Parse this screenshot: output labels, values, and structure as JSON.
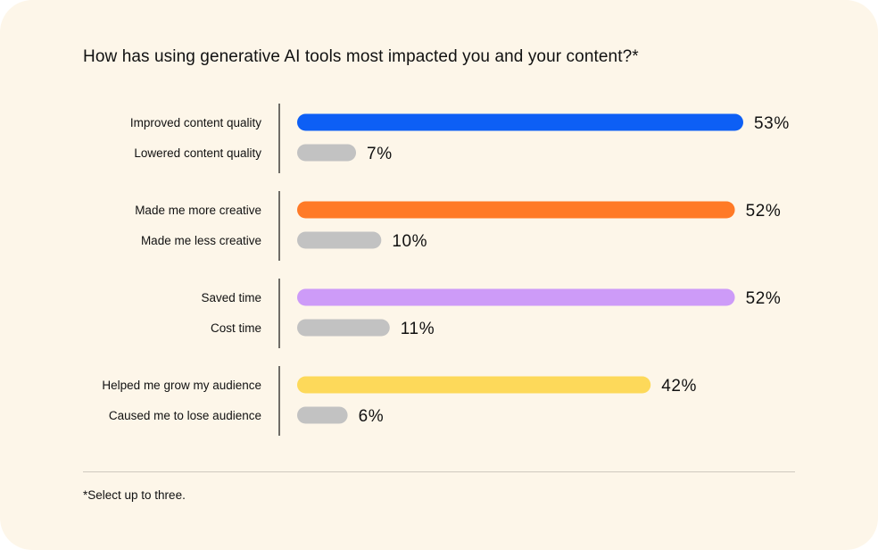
{
  "chart_data": {
    "type": "bar",
    "orientation": "horizontal",
    "title": "How has using generative AI tools most impacted you and your content?*",
    "unit": "%",
    "xlim": [
      0,
      53
    ],
    "grid": false,
    "legend": "none",
    "groups": [
      {
        "items": [
          {
            "label": "Improved content quality",
            "value": 53,
            "display": "53%",
            "color": "#0d5ff5"
          },
          {
            "label": "Lowered content quality",
            "value": 7,
            "display": "7%",
            "color": "#c2c2c2"
          }
        ]
      },
      {
        "items": [
          {
            "label": "Made me more creative",
            "value": 52,
            "display": "52%",
            "color": "#ff7a27"
          },
          {
            "label": "Made me less creative",
            "value": 10,
            "display": "10%",
            "color": "#c2c2c2"
          }
        ]
      },
      {
        "items": [
          {
            "label": "Saved time",
            "value": 52,
            "display": "52%",
            "color": "#cd9bf8"
          },
          {
            "label": "Cost time",
            "value": 11,
            "display": "11%",
            "color": "#c2c2c2"
          }
        ]
      },
      {
        "items": [
          {
            "label": "Helped me grow my audience",
            "value": 42,
            "display": "42%",
            "color": "#fdd95a"
          },
          {
            "label": "Caused me to lose audience",
            "value": 6,
            "display": "6%",
            "color": "#c2c2c2"
          }
        ]
      }
    ]
  },
  "footnote": "*Select up to three."
}
